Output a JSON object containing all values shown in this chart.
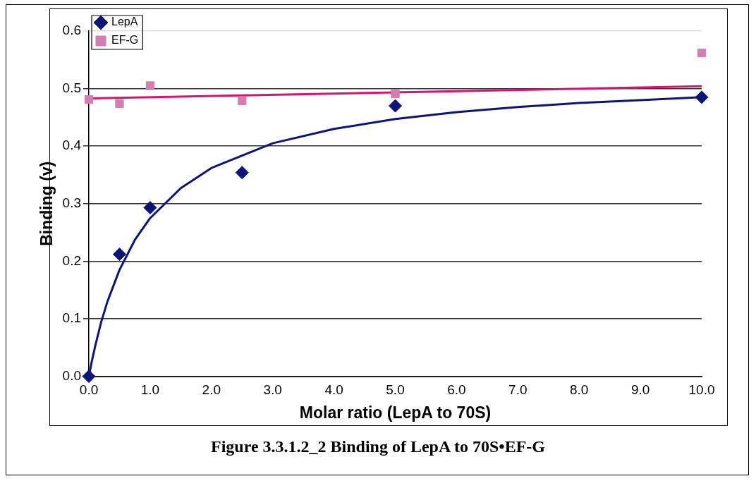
{
  "chart_data": {
    "type": "scatter",
    "xlabel": "Molar ratio (LepA to 70S)",
    "ylabel": "Binding (v)",
    "xlim": [
      0,
      10
    ],
    "xticks": [
      {
        "value": 0,
        "label": "0.0"
      },
      {
        "value": 1,
        "label": "1.0"
      },
      {
        "value": 2,
        "label": "2.0"
      },
      {
        "value": 3,
        "label": "3.0"
      },
      {
        "value": 4,
        "label": "4.0"
      },
      {
        "value": 5,
        "label": "5.0"
      },
      {
        "value": 6,
        "label": "6.0"
      },
      {
        "value": 7,
        "label": "7.0"
      },
      {
        "value": 8,
        "label": "8.0"
      },
      {
        "value": 9,
        "label": "9.0"
      },
      {
        "value": 10,
        "label": "10.0"
      }
    ],
    "ylim": [
      0,
      0.6
    ],
    "yticks": [
      {
        "value": 0,
        "label": "0.0"
      },
      {
        "value": 0.1,
        "label": "0.1"
      },
      {
        "value": 0.2,
        "label": "0.2"
      },
      {
        "value": 0.3,
        "label": "0.3"
      },
      {
        "value": 0.4,
        "label": "0.4"
      },
      {
        "value": 0.5,
        "label": "0.5"
      },
      {
        "value": 0.6,
        "label": "0.6"
      }
    ],
    "grid": "y",
    "legend": "top left",
    "series": [
      {
        "type": "line",
        "marker": "none",
        "color": "#0c1478",
        "x": [
          0,
          0.05,
          0.1,
          0.2,
          0.3,
          0.5,
          0.75,
          1,
          1.5,
          2,
          3,
          4,
          5,
          6,
          7,
          8,
          9,
          10
        ],
        "values": [
          0,
          0.027,
          0.051,
          0.094,
          0.129,
          0.185,
          0.237,
          0.275,
          0.327,
          0.362,
          0.405,
          0.43,
          0.447,
          0.459,
          0.468,
          0.475,
          0.48,
          0.485
        ]
      },
      {
        "type": "line",
        "marker": "none",
        "color": "#d6136f",
        "x": [
          0,
          10
        ],
        "values": [
          0.483,
          0.504
        ]
      },
      {
        "name": "LepA",
        "marker": "diamond",
        "color": "#0c1478",
        "x": [
          0,
          0.5,
          1,
          2.5,
          5,
          10
        ],
        "values": [
          0,
          0.212,
          0.293,
          0.354,
          0.47,
          0.485
        ]
      },
      {
        "name": "EF-G",
        "marker": "square",
        "color": "#d27fb0",
        "x": [
          0,
          0.5,
          1,
          2.5,
          5,
          10
        ],
        "values": [
          0.481,
          0.474,
          0.505,
          0.479,
          0.491,
          0.562
        ]
      }
    ],
    "annotations": [
      "Figure 3.3.1.2_2 Binding of LepA to 70S•EF-G"
    ]
  }
}
